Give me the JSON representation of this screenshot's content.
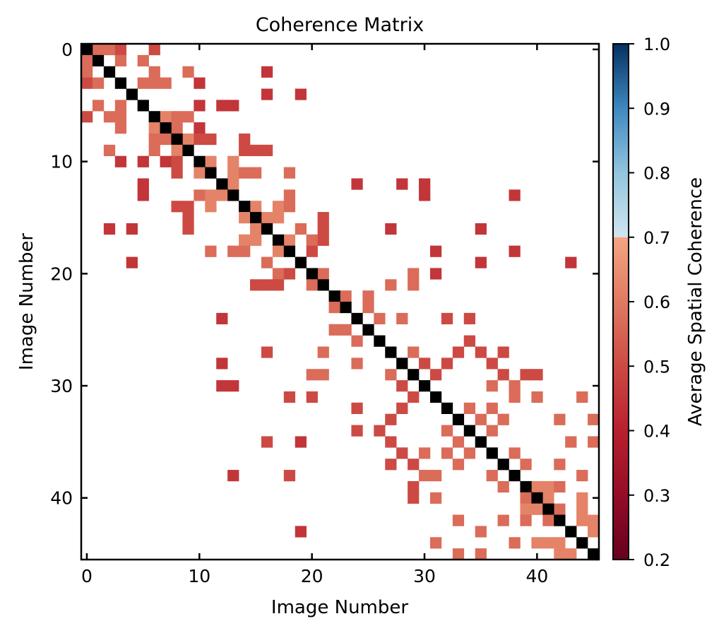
{
  "chart_data": {
    "type": "heatmap",
    "title": "Coherence Matrix",
    "xlabel": "Image Number",
    "ylabel": "Image Number",
    "size": 46,
    "diagonal_color": "#000000",
    "x_ticks": [
      "0",
      "10",
      "20",
      "30",
      "40"
    ],
    "y_ticks": [
      "0",
      "10",
      "20",
      "30",
      "40"
    ],
    "x_tick_values": [
      0,
      10,
      20,
      30,
      40
    ],
    "y_tick_values": [
      0,
      10,
      20,
      30,
      40
    ],
    "colorbar": {
      "label": "Average Spatial Coherence",
      "range": [
        0.2,
        1.0
      ],
      "ticks": [
        "0.2",
        "0.3",
        "0.4",
        "0.5",
        "0.6",
        "0.7",
        "0.8",
        "0.9",
        "1.0"
      ],
      "tick_values": [
        0.2,
        0.3,
        0.4,
        0.5,
        0.6,
        0.7,
        0.8,
        0.9,
        1.0
      ],
      "stops_low": [
        [
          0.2,
          "#67001f"
        ],
        [
          0.3,
          "#940d26"
        ],
        [
          0.4,
          "#b8202f"
        ],
        [
          0.5,
          "#cc4a43"
        ],
        [
          0.6,
          "#e07a62"
        ],
        [
          0.7,
          "#f4a582"
        ]
      ],
      "stops_high": [
        [
          0.7,
          "#d1e5f0"
        ],
        [
          0.8,
          "#92c5de"
        ],
        [
          0.9,
          "#3f88c0"
        ],
        [
          1.0,
          "#053061"
        ]
      ]
    },
    "rows": [
      [
        [
          1,
          0.57
        ],
        [
          2,
          0.57
        ],
        [
          3,
          0.5
        ],
        [
          6,
          0.5
        ]
      ],
      [
        [
          0,
          0.57
        ],
        [
          3,
          0.57
        ],
        [
          5,
          0.57
        ]
      ],
      [
        [
          0,
          0.57
        ],
        [
          6,
          0.57
        ],
        [
          9,
          0.57
        ],
        [
          16,
          0.45
        ]
      ],
      [
        [
          0,
          0.5
        ],
        [
          1,
          0.57
        ],
        [
          5,
          0.57
        ],
        [
          6,
          0.57
        ],
        [
          7,
          0.57
        ],
        [
          10,
          0.45
        ]
      ],
      [
        [
          16,
          0.45
        ],
        [
          19,
          0.45
        ]
      ],
      [
        [
          1,
          0.57
        ],
        [
          3,
          0.57
        ],
        [
          10,
          0.45
        ],
        [
          12,
          0.45
        ],
        [
          13,
          0.45
        ]
      ],
      [
        [
          0,
          0.5
        ],
        [
          2,
          0.57
        ],
        [
          3,
          0.57
        ],
        [
          7,
          0.62
        ],
        [
          8,
          0.57
        ],
        [
          9,
          0.57
        ]
      ],
      [
        [
          3,
          0.57
        ],
        [
          6,
          0.62
        ],
        [
          8,
          0.57
        ],
        [
          10,
          0.45
        ]
      ],
      [
        [
          6,
          0.57
        ],
        [
          7,
          0.57
        ],
        [
          9,
          0.62
        ],
        [
          10,
          0.5
        ],
        [
          11,
          0.5
        ],
        [
          14,
          0.5
        ]
      ],
      [
        [
          2,
          0.57
        ],
        [
          6,
          0.57
        ],
        [
          8,
          0.62
        ],
        [
          14,
          0.5
        ],
        [
          15,
          0.5
        ],
        [
          16,
          0.5
        ]
      ],
      [
        [
          3,
          0.45
        ],
        [
          5,
          0.45
        ],
        [
          7,
          0.45
        ],
        [
          8,
          0.5
        ],
        [
          11,
          0.62
        ],
        [
          13,
          0.62
        ]
      ],
      [
        [
          8,
          0.5
        ],
        [
          10,
          0.62
        ],
        [
          13,
          0.62
        ],
        [
          14,
          0.57
        ],
        [
          15,
          0.57
        ],
        [
          18,
          0.57
        ]
      ],
      [
        [
          5,
          0.45
        ],
        [
          13,
          0.62
        ],
        [
          24,
          0.45
        ],
        [
          28,
          0.45
        ],
        [
          30,
          0.45
        ]
      ],
      [
        [
          5,
          0.45
        ],
        [
          10,
          0.57
        ],
        [
          11,
          0.62
        ],
        [
          12,
          0.62
        ],
        [
          18,
          0.57
        ],
        [
          30,
          0.45
        ],
        [
          38,
          0.45
        ]
      ],
      [
        [
          8,
          0.5
        ],
        [
          9,
          0.5
        ],
        [
          11,
          0.62
        ],
        [
          15,
          0.62
        ],
        [
          17,
          0.62
        ],
        [
          18,
          0.57
        ]
      ],
      [
        [
          9,
          0.5
        ],
        [
          14,
          0.62
        ],
        [
          16,
          0.62
        ],
        [
          17,
          0.62
        ],
        [
          21,
          0.5
        ]
      ],
      [
        [
          2,
          0.45
        ],
        [
          4,
          0.45
        ],
        [
          9,
          0.5
        ],
        [
          15,
          0.62
        ],
        [
          19,
          0.57
        ],
        [
          21,
          0.5
        ],
        [
          27,
          0.45
        ],
        [
          35,
          0.45
        ]
      ],
      [
        [
          14,
          0.62
        ],
        [
          15,
          0.62
        ],
        [
          18,
          0.62
        ],
        [
          20,
          0.57
        ],
        [
          21,
          0.5
        ]
      ],
      [
        [
          11,
          0.57
        ],
        [
          13,
          0.57
        ],
        [
          14,
          0.57
        ],
        [
          17,
          0.62
        ],
        [
          20,
          0.5
        ],
        [
          31,
          0.45
        ],
        [
          38,
          0.45
        ]
      ],
      [
        [
          4,
          0.45
        ],
        [
          16,
          0.57
        ],
        [
          35,
          0.45
        ],
        [
          43,
          0.45
        ]
      ],
      [
        [
          17,
          0.57
        ],
        [
          18,
          0.5
        ],
        [
          21,
          0.57
        ],
        [
          29,
          0.57
        ],
        [
          31,
          0.45
        ]
      ],
      [
        [
          15,
          0.5
        ],
        [
          16,
          0.5
        ],
        [
          17,
          0.5
        ],
        [
          20,
          0.57
        ],
        [
          27,
          0.57
        ],
        [
          29,
          0.57
        ]
      ],
      [
        [
          23,
          0.57
        ],
        [
          25,
          0.57
        ]
      ],
      [
        [
          22,
          0.57
        ],
        [
          25,
          0.57
        ]
      ],
      [
        [
          12,
          0.45
        ],
        [
          26,
          0.57
        ],
        [
          28,
          0.57
        ],
        [
          32,
          0.5
        ],
        [
          34,
          0.5
        ]
      ],
      [
        [
          22,
          0.57
        ],
        [
          23,
          0.57
        ]
      ],
      [
        [
          24,
          0.57
        ],
        [
          34,
          0.5
        ]
      ],
      [
        [
          16,
          0.5
        ],
        [
          21,
          0.57
        ],
        [
          29,
          0.57
        ],
        [
          33,
          0.5
        ],
        [
          35,
          0.5
        ],
        [
          37,
          0.5
        ]
      ],
      [
        [
          12,
          0.45
        ],
        [
          24,
          0.57
        ],
        [
          30,
          0.5
        ],
        [
          32,
          0.5
        ],
        [
          36,
          0.5
        ]
      ],
      [
        [
          20,
          0.57
        ],
        [
          21,
          0.57
        ],
        [
          27,
          0.57
        ],
        [
          31,
          0.5
        ],
        [
          37,
          0.5
        ],
        [
          39,
          0.5
        ],
        [
          40,
          0.5
        ]
      ],
      [
        [
          12,
          0.45
        ],
        [
          13,
          0.45
        ],
        [
          28,
          0.5
        ],
        [
          36,
          0.57
        ],
        [
          38,
          0.57
        ]
      ],
      [
        [
          18,
          0.5
        ],
        [
          20,
          0.5
        ],
        [
          29,
          0.5
        ],
        [
          38,
          0.57
        ],
        [
          40,
          0.57
        ],
        [
          44,
          0.57
        ]
      ],
      [
        [
          24,
          0.5
        ],
        [
          28,
          0.5
        ],
        [
          34,
          0.57
        ],
        [
          36,
          0.57
        ]
      ],
      [
        [
          27,
          0.5
        ],
        [
          35,
          0.57
        ],
        [
          37,
          0.57
        ],
        [
          42,
          0.57
        ],
        [
          45,
          0.57
        ]
      ],
      [
        [
          24,
          0.5
        ],
        [
          26,
          0.5
        ],
        [
          32,
          0.57
        ],
        [
          36,
          0.57
        ]
      ],
      [
        [
          16,
          0.5
        ],
        [
          19,
          0.45
        ],
        [
          27,
          0.5
        ],
        [
          33,
          0.57
        ],
        [
          43,
          0.57
        ],
        [
          45,
          0.57
        ]
      ],
      [
        [
          28,
          0.5
        ],
        [
          30,
          0.57
        ],
        [
          32,
          0.57
        ],
        [
          34,
          0.57
        ],
        [
          38,
          0.57
        ]
      ],
      [
        [
          27,
          0.5
        ],
        [
          29,
          0.5
        ],
        [
          33,
          0.57
        ],
        [
          39,
          0.57
        ],
        [
          42,
          0.57
        ]
      ],
      [
        [
          13,
          0.45
        ],
        [
          18,
          0.5
        ],
        [
          30,
          0.57
        ],
        [
          31,
          0.57
        ],
        [
          36,
          0.57
        ],
        [
          44,
          0.57
        ]
      ],
      [
        [
          29,
          0.5
        ],
        [
          37,
          0.57
        ],
        [
          40,
          0.62
        ],
        [
          41,
          0.62
        ],
        [
          42,
          0.57
        ]
      ],
      [
        [
          29,
          0.5
        ],
        [
          31,
          0.57
        ],
        [
          39,
          0.57
        ],
        [
          41,
          0.62
        ],
        [
          44,
          0.62
        ]
      ],
      [
        [
          39,
          0.62
        ],
        [
          40,
          0.62
        ],
        [
          42,
          0.57
        ],
        [
          44,
          0.62
        ]
      ],
      [
        [
          33,
          0.57
        ],
        [
          37,
          0.57
        ],
        [
          39,
          0.57
        ],
        [
          41,
          0.57
        ],
        [
          44,
          0.62
        ],
        [
          45,
          0.62
        ]
      ],
      [
        [
          19,
          0.45
        ],
        [
          35,
          0.57
        ],
        [
          45,
          0.62
        ]
      ],
      [
        [
          31,
          0.57
        ],
        [
          38,
          0.57
        ],
        [
          40,
          0.62
        ],
        [
          41,
          0.62
        ],
        [
          42,
          0.62
        ]
      ],
      [
        [
          33,
          0.57
        ],
        [
          35,
          0.57
        ],
        [
          42,
          0.62
        ],
        [
          43,
          0.62
        ]
      ]
    ]
  }
}
